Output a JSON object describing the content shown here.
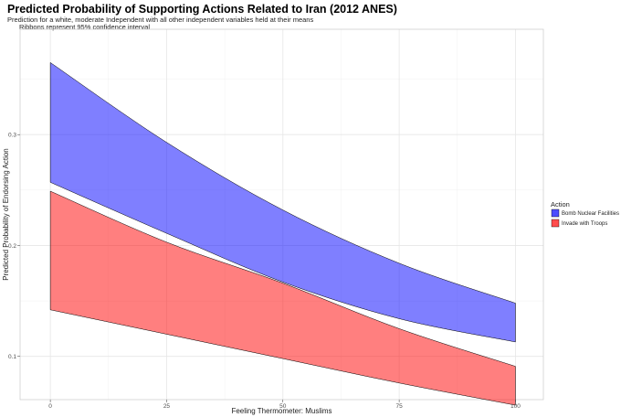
{
  "chart_data": {
    "type": "area",
    "title": "Predicted Probability of Supporting Actions Related to Iran (2012 ANES)",
    "subtitle": "Prediction for a white, moderate Independent with all other independent variables held at their means",
    "caption": "Ribbons represent 95% confidence interval",
    "xlabel": "Feeling Thermometer: Muslims",
    "ylabel": "Predicted Probability of Endorsing Action",
    "xlim": [
      -6.5,
      106
    ],
    "ylim": [
      0.061,
      0.395
    ],
    "x_ticks": [
      0,
      25,
      50,
      75,
      100
    ],
    "x_tick_labels": [
      "0",
      "25",
      "50",
      "75",
      "100"
    ],
    "y_ticks": [
      0.1,
      0.2,
      0.3
    ],
    "y_tick_labels": [
      "0.1",
      "0.2",
      "0.3"
    ],
    "grid": true,
    "legend_position": "right",
    "legend_title": "Action",
    "series": [
      {
        "name": "Bomb Nuclear Facilities",
        "color": "#0000ff",
        "x": [
          0,
          25,
          50,
          75,
          100
        ],
        "lower": [
          0.257,
          0.211,
          0.167,
          0.134,
          0.113
        ],
        "upper": [
          0.365,
          0.293,
          0.232,
          0.184,
          0.148
        ]
      },
      {
        "name": "Invade with Troops",
        "color": "#ff0000",
        "x": [
          0,
          25,
          50,
          75,
          100
        ],
        "lower": [
          0.142,
          0.12,
          0.098,
          0.076,
          0.056
        ],
        "upper": [
          0.249,
          0.203,
          0.166,
          0.125,
          0.091
        ]
      }
    ]
  }
}
